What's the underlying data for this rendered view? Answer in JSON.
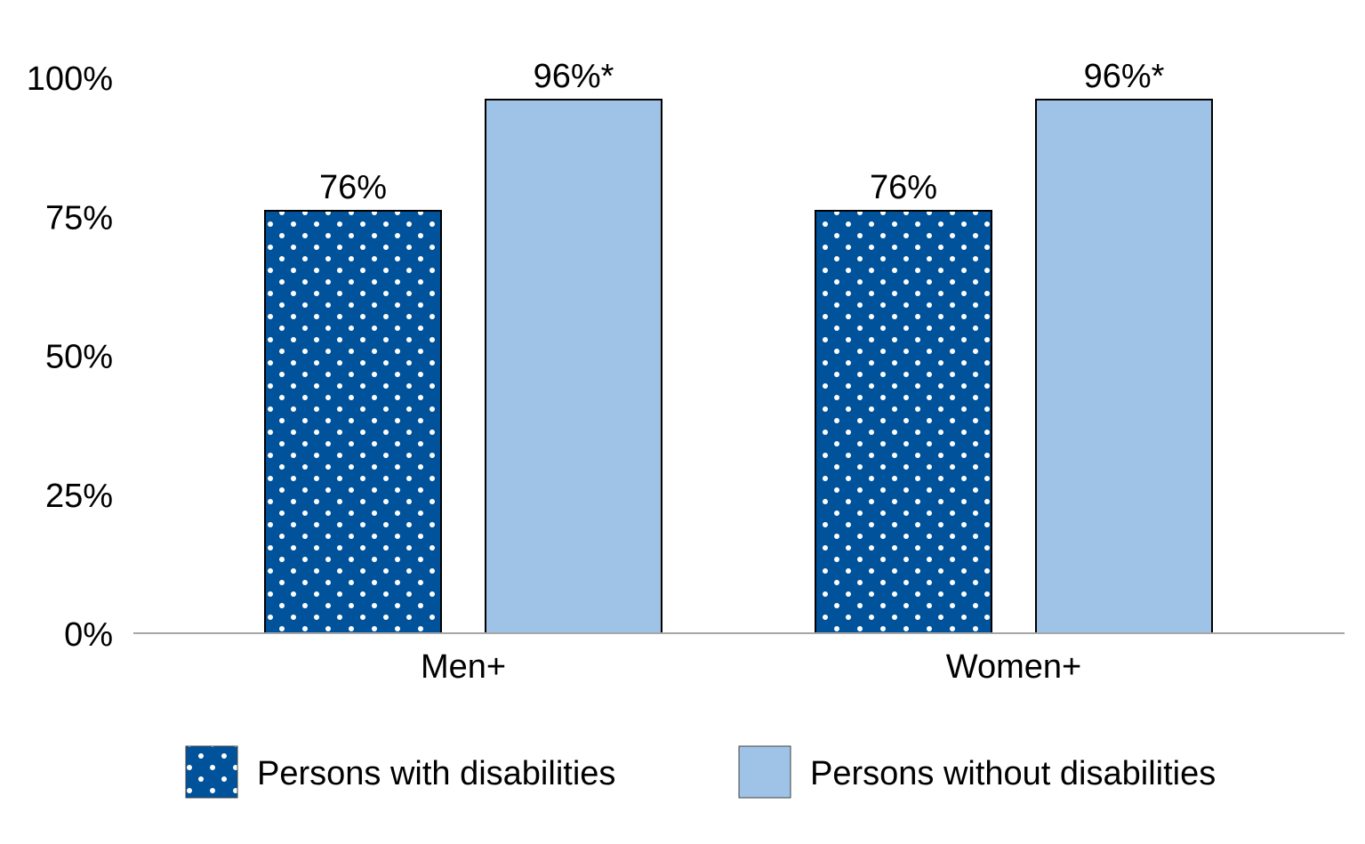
{
  "chart_data": {
    "type": "bar",
    "title": "",
    "xlabel": "",
    "ylabel": "",
    "categories": [
      "Men+",
      "Women+"
    ],
    "series": [
      {
        "name": "Persons with disabilities",
        "values": [
          76,
          76
        ],
        "labels": [
          "76%",
          "76%"
        ],
        "color": "#00539b",
        "pattern": "dots"
      },
      {
        "name": "Persons without disabilities",
        "values": [
          96,
          96
        ],
        "labels": [
          "96%*",
          "96%*"
        ],
        "color": "#9fc3e6",
        "pattern": "solid"
      }
    ],
    "ylim": [
      0,
      100
    ],
    "yticks": [
      0,
      25,
      50,
      75,
      100
    ],
    "ytick_labels": [
      "0%",
      "25%",
      "50%",
      "75%",
      "100%"
    ],
    "grid": false,
    "legend_position": "bottom"
  }
}
